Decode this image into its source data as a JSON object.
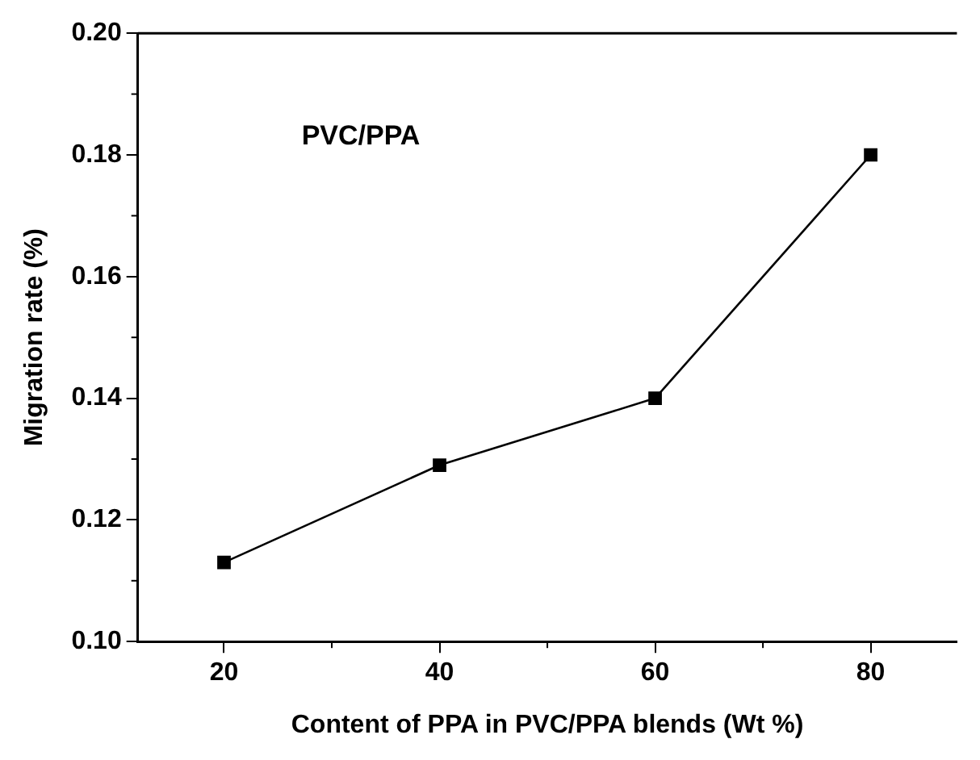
{
  "chart_data": {
    "type": "line",
    "xlabel": "Content of PPA in PVC/PPA blends (Wt %)",
    "ylabel": "Migration rate (%)",
    "x": [
      20,
      40,
      60,
      80
    ],
    "series": [
      {
        "color": "#000000",
        "values": [
          0.113,
          0.129,
          0.14,
          0.18
        ]
      }
    ],
    "xlim": [
      12,
      88
    ],
    "xticks": [
      20,
      40,
      60,
      80
    ],
    "ylim": [
      0.1,
      0.2
    ],
    "yticks": [
      {
        "value": 0.1,
        "label": "0.10"
      },
      {
        "value": 0.12,
        "label": "0.12"
      },
      {
        "value": 0.14,
        "label": "0.14"
      },
      {
        "value": 0.16,
        "label": "0.16"
      },
      {
        "value": 0.18,
        "label": "0.18"
      },
      {
        "value": 0.2,
        "label": "0.20"
      }
    ],
    "annotations": [
      "PVC/PPA"
    ],
    "marker": "square",
    "line_style": "solid",
    "grid": false,
    "legend": false
  }
}
